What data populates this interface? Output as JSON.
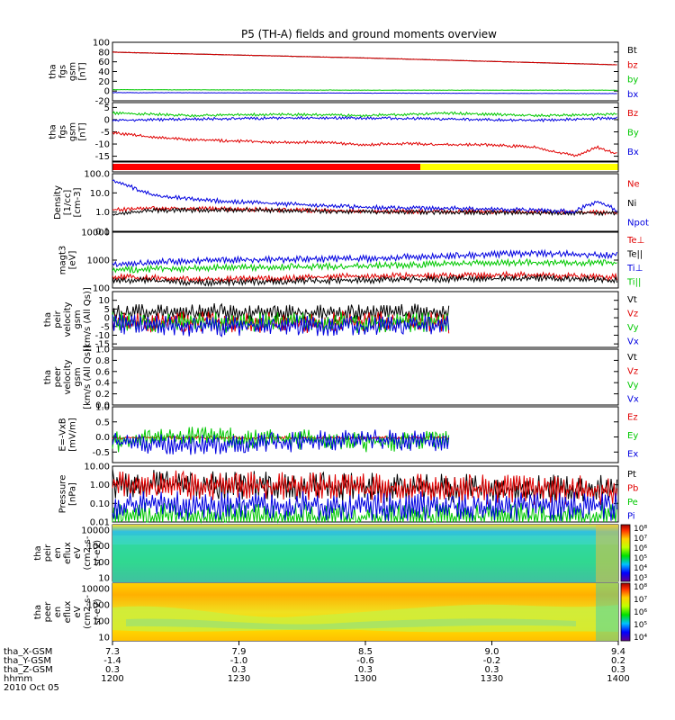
{
  "title": "P5 (TH-A) fields and ground moments overview",
  "colors": {
    "black": "#000000",
    "red": "#e00000",
    "green": "#00c800",
    "blue": "#0000e0",
    "yellow": "#ffff00"
  },
  "chart_data": [
    {
      "id": "bfgm",
      "type": "line",
      "ylabel": [
        "tha",
        "fgs",
        "gsm",
        "[nT]"
      ],
      "yticks": [
        "100",
        "80",
        "60",
        "40",
        "20",
        "0",
        "-20"
      ],
      "ylim": [
        -20,
        100
      ],
      "legend": [
        "Bt",
        "bz",
        "by",
        "bx"
      ],
      "series": [
        {
          "name": "Bt",
          "color": "black",
          "x": [
            0,
            30,
            60,
            90,
            120
          ],
          "y": [
            80,
            74,
            68,
            61,
            54
          ]
        },
        {
          "name": "bz",
          "color": "red",
          "x": [
            0,
            30,
            60,
            90,
            120
          ],
          "y": [
            80,
            74,
            68,
            61,
            54
          ]
        },
        {
          "name": "by",
          "color": "green",
          "x": [
            0,
            60,
            120
          ],
          "y": [
            3,
            2,
            2
          ]
        },
        {
          "name": "bx",
          "color": "blue",
          "x": [
            0,
            60,
            120
          ],
          "y": [
            -3,
            -4,
            -5
          ]
        }
      ]
    },
    {
      "id": "bdetr",
      "type": "line",
      "ylabel": [
        "tha",
        "fgs",
        "gsm",
        "[nT]"
      ],
      "yticks": [
        "5",
        "0",
        "-5",
        "-10",
        "-15"
      ],
      "ylim": [
        -17,
        7
      ],
      "legend": [
        "Bz",
        "By",
        "Bx"
      ],
      "series": [
        {
          "name": "Bz",
          "color": "red",
          "x": [
            0,
            5,
            10,
            20,
            30,
            40,
            50,
            60,
            70,
            80,
            90,
            100,
            105,
            110,
            115,
            120
          ],
          "y": [
            -5,
            -6,
            -7,
            -8,
            -8.5,
            -9,
            -9,
            -10,
            -9.5,
            -10,
            -10,
            -11,
            -13,
            -14.5,
            -11,
            -14
          ]
        },
        {
          "name": "By",
          "color": "green",
          "x": [
            0,
            20,
            40,
            60,
            80,
            100,
            120
          ],
          "y": [
            3,
            2,
            2.5,
            2,
            3,
            2,
            2.5
          ]
        },
        {
          "name": "Bx",
          "color": "blue",
          "x": [
            0,
            20,
            40,
            60,
            80,
            100,
            120
          ],
          "y": [
            0,
            0.5,
            1,
            1,
            0.5,
            0,
            1
          ]
        }
      ]
    },
    {
      "id": "density",
      "type": "line",
      "log": true,
      "ylabel": [
        "Density",
        "[1/cc]",
        "[cm-3]"
      ],
      "yticks": [
        "100.0",
        "10.0",
        "1.0",
        "0.1"
      ],
      "ylim": [
        0.1,
        100
      ],
      "legend": [
        "Ne",
        "Ni",
        "Npot"
      ],
      "series": [
        {
          "name": "Ne",
          "color": "red",
          "x": [
            0,
            10,
            30,
            60,
            90,
            120
          ],
          "y": [
            1.5,
            1.8,
            1.6,
            1.3,
            1.2,
            1.1
          ]
        },
        {
          "name": "Ni",
          "color": "black",
          "x": [
            0,
            10,
            30,
            60,
            90,
            120
          ],
          "y": [
            0.8,
            1.4,
            1.5,
            1.2,
            1.1,
            1.0
          ]
        },
        {
          "name": "Npot",
          "color": "blue",
          "x": [
            0,
            3,
            6,
            10,
            20,
            40,
            60,
            80,
            100,
            110,
            115,
            120
          ],
          "y": [
            50,
            30,
            15,
            8,
            5,
            3,
            2,
            1.8,
            1.5,
            1.2,
            4,
            1.2
          ]
        }
      ]
    },
    {
      "id": "temp",
      "type": "line",
      "log": true,
      "ylabel": [
        "magt3",
        "[eV]"
      ],
      "yticks": [
        "10000",
        "1000",
        "100"
      ],
      "ylim": [
        100,
        10000
      ],
      "legend": [
        "Te⊥",
        "Te||",
        "Ti⊥",
        "Ti||"
      ],
      "series": [
        {
          "name": "Te⊥",
          "color": "red",
          "x": [
            0,
            20,
            40,
            60,
            80,
            100,
            120
          ],
          "y": [
            300,
            220,
            260,
            300,
            320,
            340,
            280
          ]
        },
        {
          "name": "Te||",
          "color": "black",
          "x": [
            0,
            20,
            40,
            60,
            80,
            100,
            120
          ],
          "y": [
            230,
            180,
            200,
            220,
            240,
            260,
            220
          ]
        },
        {
          "name": "Ti⊥",
          "color": "blue",
          "x": [
            0,
            20,
            40,
            60,
            80,
            100,
            120
          ],
          "y": [
            800,
            1100,
            1200,
            1300,
            1600,
            2000,
            1700
          ]
        },
        {
          "name": "Ti||",
          "color": "green",
          "x": [
            0,
            20,
            40,
            60,
            80,
            100,
            120
          ],
          "y": [
            500,
            600,
            650,
            700,
            850,
            950,
            900
          ]
        }
      ]
    },
    {
      "id": "vi",
      "type": "line",
      "ylabel": [
        "tha",
        "peir",
        "velocity",
        "gsm",
        "[km/s (All Qs)]"
      ],
      "yticks": [
        "10",
        "5",
        "0",
        "-5",
        "-10",
        "-15"
      ],
      "ylim": [
        -17,
        15
      ],
      "legend": [
        "Vt",
        "Vz",
        "Vy",
        "Vx"
      ],
      "series": [
        {
          "name": "Vt",
          "color": "black",
          "x": [
            0,
            20,
            40,
            60,
            80
          ],
          "y": [
            5,
            6,
            5,
            5,
            6
          ]
        },
        {
          "name": "Vz",
          "color": "red",
          "x": [
            0,
            20,
            40,
            60,
            80
          ],
          "y": [
            0,
            1,
            0,
            1,
            0
          ]
        },
        {
          "name": "Vy",
          "color": "green",
          "x": [
            0,
            20,
            40,
            60,
            80
          ],
          "y": [
            1,
            0,
            1,
            0,
            1
          ]
        },
        {
          "name": "Vx",
          "color": "blue",
          "x": [
            0,
            20,
            40,
            60,
            80
          ],
          "y": [
            -1,
            -2,
            -1,
            -2,
            -1
          ]
        }
      ]
    },
    {
      "id": "ve",
      "type": "line",
      "ylabel": [
        "tha",
        "peer",
        "velocity",
        "gsm",
        "[km/s (All Qs)]"
      ],
      "yticks": [
        "1.0",
        "0.8",
        "0.6",
        "0.4",
        "0.2",
        "0.0"
      ],
      "ylim": [
        0,
        1
      ],
      "legend": [
        "Vt",
        "Vz",
        "Vy",
        "Vx"
      ],
      "series": []
    },
    {
      "id": "efield",
      "type": "line",
      "ylabel": [
        "E=-VxB",
        "[mV/m]"
      ],
      "yticks": [
        "1.0",
        "0.5",
        "0.0",
        "-0.5"
      ],
      "ylim": [
        -0.85,
        1.0
      ],
      "legend": [
        "Ez",
        "Ey",
        "Ex"
      ],
      "series": [
        {
          "name": "Ez",
          "color": "red",
          "x": [
            0,
            80
          ],
          "y": [
            0,
            0
          ]
        },
        {
          "name": "Ey",
          "color": "green",
          "x": [
            0,
            20,
            40,
            60,
            80
          ],
          "y": [
            0,
            0.2,
            0.1,
            0,
            0.1
          ]
        },
        {
          "name": "Ex",
          "color": "blue",
          "x": [
            0,
            20,
            40,
            60,
            80
          ],
          "y": [
            0,
            -0.1,
            0,
            0.1,
            0
          ]
        }
      ]
    },
    {
      "id": "pressure",
      "type": "line",
      "log": true,
      "ylabel": [
        "Pressure",
        "[nPa]"
      ],
      "yticks": [
        "10.00",
        "1.00",
        "0.10",
        "0.01"
      ],
      "ylim": [
        0.01,
        10
      ],
      "legend": [
        "Pt",
        "Pb",
        "Pe",
        "Pi"
      ],
      "series": [
        {
          "name": "Pt",
          "color": "black",
          "x": [
            0,
            30,
            60,
            90,
            120
          ],
          "y": [
            2.9,
            2.3,
            1.8,
            1.5,
            1.3
          ]
        },
        {
          "name": "Pb",
          "color": "red",
          "x": [
            0,
            30,
            60,
            90,
            120
          ],
          "y": [
            2.6,
            2.1,
            1.7,
            1.4,
            1.2
          ]
        },
        {
          "name": "Pe",
          "color": "green",
          "x": [
            0,
            60,
            120
          ],
          "y": [
            0.045,
            0.045,
            0.05
          ]
        },
        {
          "name": "Pi",
          "color": "blue",
          "x": [
            0,
            60,
            120
          ],
          "y": [
            0.2,
            0.18,
            0.17
          ]
        }
      ]
    },
    {
      "id": "ispec",
      "type": "heatmap",
      "ylabel": [
        "tha",
        "peir",
        "en",
        "eflux",
        "eV",
        "(cm2-s-",
        "sr-eV)"
      ],
      "yticks": [
        "10000",
        "1000",
        "100",
        "10"
      ],
      "colorbar_ticks": [
        "10⁸",
        "10⁷",
        "10⁶",
        "10⁵",
        "10⁴",
        "10³"
      ]
    },
    {
      "id": "espec",
      "type": "heatmap",
      "ylabel": [
        "tha",
        "peer",
        "en",
        "eflux",
        "eV",
        "(cm2-s-",
        "sr-eV)"
      ],
      "yticks": [
        "10000",
        "1000",
        "100",
        "10"
      ],
      "colorbar_ticks": [
        "10⁸",
        "10⁷",
        "10⁶",
        "10⁵",
        "10⁴"
      ]
    }
  ],
  "mode_bar": {
    "segments": [
      {
        "color": "red",
        "x": [
          0,
          70
        ]
      },
      {
        "color": "yellow",
        "x": [
          70,
          120
        ]
      }
    ]
  },
  "xaxis": {
    "rows": [
      {
        "label": "tha_X-GSM",
        "values": [
          "7.3",
          "7.9",
          "8.5",
          "9.0",
          "9.4"
        ]
      },
      {
        "label": "tha_Y-GSM",
        "values": [
          "-1.4",
          "-1.0",
          "-0.6",
          "-0.2",
          "0.2"
        ]
      },
      {
        "label": "tha_Z-GSM",
        "values": [
          "0.3",
          "0.3",
          "0.3",
          "0.3",
          "0.3"
        ]
      },
      {
        "label": "hhmm",
        "values": [
          "1200",
          "1230",
          "1300",
          "1330",
          "1400"
        ]
      }
    ],
    "date": "2010 Oct 05"
  }
}
